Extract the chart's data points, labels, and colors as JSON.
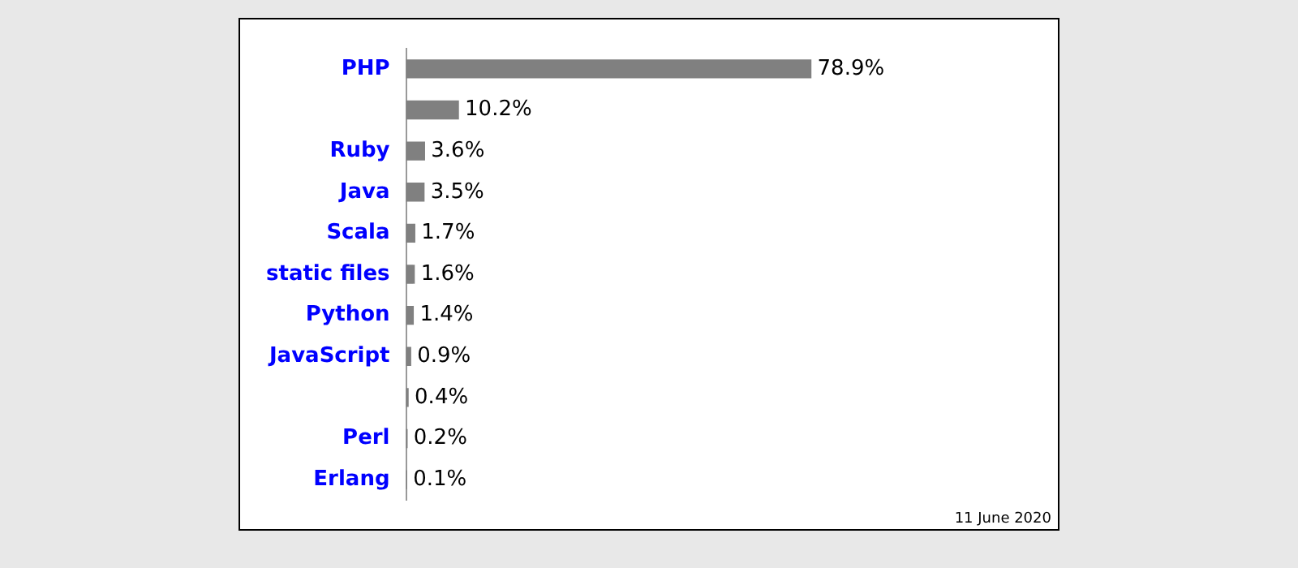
{
  "chart_data": {
    "type": "bar",
    "orientation": "horizontal",
    "categories": [
      "PHP",
      null,
      "Ruby",
      "Java",
      "Scala",
      "static files",
      "Python",
      "JavaScript",
      null,
      "Perl",
      "Erlang"
    ],
    "values": [
      78.9,
      10.2,
      3.6,
      3.5,
      1.7,
      1.6,
      1.4,
      0.9,
      0.4,
      0.2,
      0.1
    ],
    "value_labels": [
      "78.9%",
      "10.2%",
      "3.6%",
      "3.5%",
      "1.7%",
      "1.6%",
      "1.4%",
      "0.9%",
      "0.4%",
      "0.2%",
      "0.1%"
    ],
    "color": "#808080",
    "legend": false,
    "annotations": [
      "11 June 2020"
    ]
  }
}
